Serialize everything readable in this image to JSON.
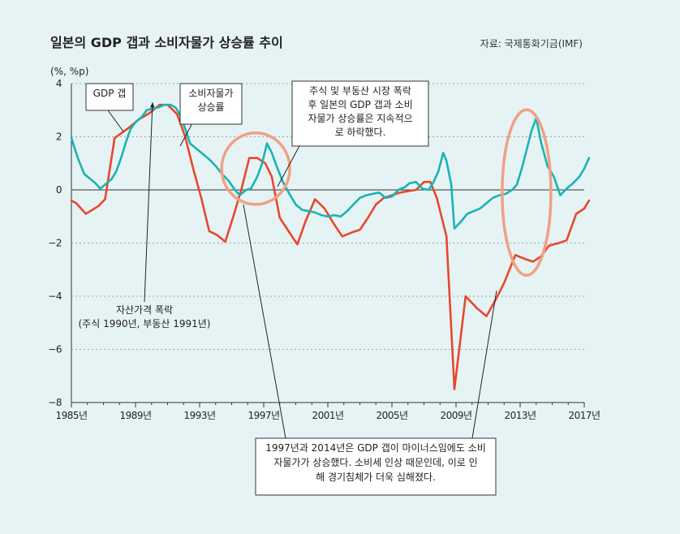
{
  "chart_data": {
    "type": "line",
    "title": "일본의 GDP 갭과 소비자물가 상승률 추이",
    "source": "자료: 국제통화기금(IMF)",
    "ylabel": "(%, %p)",
    "ylim": [
      -8,
      4
    ],
    "yticks": [
      "4",
      "2",
      "0",
      "−2",
      "−4",
      "−6",
      "−8"
    ],
    "xlim": [
      1985,
      2017
    ],
    "xticks": [
      "1985년",
      "1989년",
      "1993년",
      "1997년",
      "2001년",
      "2005년",
      "2009년",
      "2013년",
      "2017년"
    ],
    "grid": true,
    "series": [
      {
        "name": "GDP 갭",
        "color": "#e8472d",
        "points": [
          [
            1985.0,
            -0.4
          ],
          [
            1985.3,
            -0.5
          ],
          [
            1985.9,
            -0.9
          ],
          [
            1986.7,
            -0.6
          ],
          [
            1987.1,
            -0.35
          ],
          [
            1987.7,
            1.95
          ],
          [
            1988.5,
            2.3
          ],
          [
            1989.2,
            2.65
          ],
          [
            1989.9,
            2.9
          ],
          [
            1990.5,
            3.2
          ],
          [
            1991.0,
            3.2
          ],
          [
            1991.6,
            2.85
          ],
          [
            1992.1,
            2.0
          ],
          [
            1992.6,
            0.8
          ],
          [
            1993.1,
            -0.3
          ],
          [
            1993.6,
            -1.55
          ],
          [
            1994.1,
            -1.7
          ],
          [
            1994.6,
            -1.95
          ],
          [
            1995.1,
            -1.0
          ],
          [
            1995.6,
            0.0
          ],
          [
            1996.1,
            1.2
          ],
          [
            1996.6,
            1.2
          ],
          [
            1997.1,
            1.0
          ],
          [
            1997.5,
            0.5
          ],
          [
            1998.0,
            -1.05
          ],
          [
            1998.6,
            -1.6
          ],
          [
            1999.1,
            -2.05
          ],
          [
            1999.6,
            -1.2
          ],
          [
            2000.2,
            -0.35
          ],
          [
            2000.8,
            -0.7
          ],
          [
            2001.4,
            -1.3
          ],
          [
            2001.9,
            -1.75
          ],
          [
            2002.5,
            -1.6
          ],
          [
            2003.0,
            -1.5
          ],
          [
            2003.5,
            -1.05
          ],
          [
            2004.0,
            -0.55
          ],
          [
            2004.5,
            -0.3
          ],
          [
            2005.0,
            -0.2
          ],
          [
            2005.5,
            -0.1
          ],
          [
            2006.0,
            -0.05
          ],
          [
            2006.5,
            0.0
          ],
          [
            2007.0,
            0.3
          ],
          [
            2007.4,
            0.3
          ],
          [
            2007.8,
            -0.3
          ],
          [
            2008.4,
            -1.75
          ],
          [
            2008.9,
            -7.5
          ],
          [
            2009.6,
            -4.0
          ],
          [
            2010.3,
            -4.45
          ],
          [
            2010.9,
            -4.75
          ],
          [
            2011.5,
            -4.1
          ],
          [
            2012.0,
            -3.5
          ],
          [
            2012.7,
            -2.45
          ],
          [
            2013.3,
            -2.6
          ],
          [
            2013.8,
            -2.7
          ],
          [
            2014.3,
            -2.5
          ],
          [
            2014.8,
            -2.1
          ],
          [
            2015.4,
            -2.0
          ],
          [
            2015.9,
            -1.9
          ],
          [
            2016.5,
            -0.9
          ],
          [
            2017.0,
            -0.7
          ],
          [
            2017.3,
            -0.4
          ]
        ]
      },
      {
        "name": "소비자물가 상승률",
        "color": "#1ab3b3",
        "points": [
          [
            1985.0,
            1.95
          ],
          [
            1985.4,
            1.2
          ],
          [
            1985.8,
            0.6
          ],
          [
            1986.1,
            0.45
          ],
          [
            1986.5,
            0.25
          ],
          [
            1986.8,
            0.05
          ],
          [
            1987.1,
            0.2
          ],
          [
            1987.5,
            0.4
          ],
          [
            1987.8,
            0.7
          ],
          [
            1988.1,
            1.2
          ],
          [
            1988.4,
            1.8
          ],
          [
            1988.7,
            2.3
          ],
          [
            1989.0,
            2.55
          ],
          [
            1989.4,
            2.75
          ],
          [
            1989.7,
            3.0
          ],
          [
            1990.0,
            3.05
          ],
          [
            1990.4,
            3.1
          ],
          [
            1990.8,
            3.2
          ],
          [
            1991.2,
            3.2
          ],
          [
            1991.5,
            3.1
          ],
          [
            1991.8,
            2.8
          ],
          [
            1992.1,
            2.3
          ],
          [
            1992.4,
            1.75
          ],
          [
            1992.8,
            1.55
          ],
          [
            1993.2,
            1.35
          ],
          [
            1993.6,
            1.15
          ],
          [
            1994.0,
            0.9
          ],
          [
            1994.4,
            0.6
          ],
          [
            1994.8,
            0.35
          ],
          [
            1995.2,
            0.0
          ],
          [
            1995.5,
            -0.2
          ],
          [
            1995.9,
            0.0
          ],
          [
            1996.2,
            0.05
          ],
          [
            1996.6,
            0.5
          ],
          [
            1996.9,
            1.0
          ],
          [
            1997.2,
            1.75
          ],
          [
            1997.5,
            1.4
          ],
          [
            1997.8,
            0.9
          ],
          [
            1998.2,
            0.3
          ],
          [
            1998.6,
            -0.15
          ],
          [
            1999.0,
            -0.55
          ],
          [
            1999.4,
            -0.75
          ],
          [
            1999.8,
            -0.8
          ],
          [
            2000.2,
            -0.85
          ],
          [
            2000.6,
            -0.95
          ],
          [
            2001.0,
            -1.0
          ],
          [
            2001.4,
            -0.95
          ],
          [
            2001.8,
            -1.0
          ],
          [
            2002.2,
            -0.8
          ],
          [
            2002.6,
            -0.55
          ],
          [
            2003.0,
            -0.3
          ],
          [
            2003.4,
            -0.2
          ],
          [
            2003.8,
            -0.15
          ],
          [
            2004.2,
            -0.1
          ],
          [
            2004.6,
            -0.3
          ],
          [
            2005.0,
            -0.25
          ],
          [
            2005.4,
            0.0
          ],
          [
            2005.8,
            0.1
          ],
          [
            2006.1,
            0.25
          ],
          [
            2006.5,
            0.3
          ],
          [
            2006.9,
            0.05
          ],
          [
            2007.3,
            0.0
          ],
          [
            2007.6,
            0.3
          ],
          [
            2007.9,
            0.7
          ],
          [
            2008.2,
            1.4
          ],
          [
            2008.4,
            1.1
          ],
          [
            2008.7,
            0.2
          ],
          [
            2008.9,
            -1.45
          ],
          [
            2009.3,
            -1.2
          ],
          [
            2009.7,
            -0.9
          ],
          [
            2010.1,
            -0.8
          ],
          [
            2010.5,
            -0.7
          ],
          [
            2010.9,
            -0.5
          ],
          [
            2011.3,
            -0.3
          ],
          [
            2011.7,
            -0.2
          ],
          [
            2012.1,
            -0.15
          ],
          [
            2012.5,
            0.0
          ],
          [
            2012.8,
            0.2
          ],
          [
            2013.1,
            0.8
          ],
          [
            2013.4,
            1.5
          ],
          [
            2013.7,
            2.2
          ],
          [
            2014.0,
            2.7
          ],
          [
            2014.3,
            1.8
          ],
          [
            2014.7,
            0.9
          ],
          [
            2015.1,
            0.5
          ],
          [
            2015.5,
            -0.2
          ],
          [
            2015.9,
            0.05
          ],
          [
            2016.3,
            0.25
          ],
          [
            2016.7,
            0.5
          ],
          [
            2017.0,
            0.8
          ],
          [
            2017.3,
            1.2
          ]
        ]
      }
    ],
    "annotations": {
      "gdp_label": "GDP 갭",
      "cpi_label": [
        "소비자물가",
        "상승률"
      ],
      "asset_crash": [
        "자산가격 폭락",
        "(주식 1990년, 부동산 1991년)"
      ],
      "post_crash_note": [
        "주식 및 부동산 시장 폭락",
        "후 일본의 GDP 갭과 소비",
        "자물가 상승률은 지속적으",
        "로 하락했다."
      ],
      "tax_note": [
        "1997년과 2014년은 GDP 갭이 마이너스임에도 소비",
        "자물가가 상승했다. 소비세 인상 때문인데, 이로 인",
        "해 경기침체가 더욱 심해졌다."
      ]
    },
    "highlight_circle_color": "#f0a184"
  }
}
